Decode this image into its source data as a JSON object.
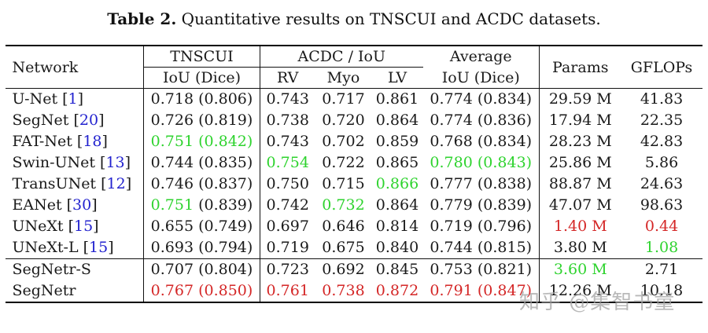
{
  "title": {
    "label": "Table 2.",
    "caption": "Quantitative results on TNSCUI and ACDC datasets."
  },
  "colors": {
    "green": "#2ed32e",
    "red": "#d42626",
    "blue": "#2323cf",
    "watermark": "#a6a6a6"
  },
  "table": {
    "header": {
      "network": "Network",
      "tnscui": "TNSCUI",
      "acdc": "ACDC / IoU",
      "average": "Average",
      "iou_dice": "IoU (Dice)",
      "rv": "RV",
      "myo": "Myo",
      "lv": "LV",
      "params": "Params",
      "gflops": "GFLOPs"
    },
    "rows": [
      {
        "network": "U-Net",
        "ref": "1",
        "tnscui": [
          "0.718",
          "k",
          "(0.806)",
          "k"
        ],
        "acdc": [
          [
            "0.743",
            "k"
          ],
          [
            "0.717",
            "k"
          ],
          [
            "0.861",
            "k"
          ]
        ],
        "avg": [
          "0.774",
          "k",
          "(0.834)",
          "k"
        ],
        "params": [
          "29.59 M",
          "k"
        ],
        "gflops": [
          "41.83",
          "k"
        ],
        "group_start": false
      },
      {
        "network": "SegNet",
        "ref": "20",
        "tnscui": [
          "0.726",
          "k",
          "(0.819)",
          "k"
        ],
        "acdc": [
          [
            "0.738",
            "k"
          ],
          [
            "0.720",
            "k"
          ],
          [
            "0.864",
            "k"
          ]
        ],
        "avg": [
          "0.774",
          "k",
          "(0.836)",
          "k"
        ],
        "params": [
          "17.94 M",
          "k"
        ],
        "gflops": [
          "22.35",
          "k"
        ],
        "group_start": false
      },
      {
        "network": "FAT-Net",
        "ref": "18",
        "tnscui": [
          "0.751",
          "g",
          "(0.842)",
          "g"
        ],
        "acdc": [
          [
            "0.743",
            "k"
          ],
          [
            "0.702",
            "k"
          ],
          [
            "0.859",
            "k"
          ]
        ],
        "avg": [
          "0.768",
          "k",
          "(0.834)",
          "k"
        ],
        "params": [
          "28.23 M",
          "k"
        ],
        "gflops": [
          "42.83",
          "k"
        ],
        "group_start": false
      },
      {
        "network": "Swin-UNet",
        "ref": "13",
        "tnscui": [
          "0.744",
          "k",
          "(0.835)",
          "k"
        ],
        "acdc": [
          [
            "0.754",
            "g"
          ],
          [
            "0.722",
            "k"
          ],
          [
            "0.865",
            "k"
          ]
        ],
        "avg": [
          "0.780",
          "g",
          "(0.843)",
          "g"
        ],
        "params": [
          "25.86 M",
          "k"
        ],
        "gflops": [
          "5.86",
          "k"
        ],
        "group_start": false
      },
      {
        "network": "TransUNet",
        "ref": "12",
        "tnscui": [
          "0.746",
          "k",
          "(0.837)",
          "k"
        ],
        "acdc": [
          [
            "0.750",
            "k"
          ],
          [
            "0.715",
            "k"
          ],
          [
            "0.866",
            "g"
          ]
        ],
        "avg": [
          "0.777",
          "k",
          "(0.838)",
          "k"
        ],
        "params": [
          "88.87 M",
          "k"
        ],
        "gflops": [
          "24.63",
          "k"
        ],
        "group_start": false
      },
      {
        "network": "EANet",
        "ref": "30",
        "tnscui": [
          "0.751",
          "g",
          "(0.839)",
          "k"
        ],
        "acdc": [
          [
            "0.742",
            "k"
          ],
          [
            "0.732",
            "g"
          ],
          [
            "0.864",
            "k"
          ]
        ],
        "avg": [
          "0.779",
          "k",
          "(0.839)",
          "k"
        ],
        "params": [
          "47.07 M",
          "k"
        ],
        "gflops": [
          "98.63",
          "k"
        ],
        "group_start": false
      },
      {
        "network": "UNeXt",
        "ref": "15",
        "tnscui": [
          "0.655",
          "k",
          "(0.749)",
          "k"
        ],
        "acdc": [
          [
            "0.697",
            "k"
          ],
          [
            "0.646",
            "k"
          ],
          [
            "0.814",
            "k"
          ]
        ],
        "avg": [
          "0.719",
          "k",
          "(0.796)",
          "k"
        ],
        "params": [
          "1.40 M",
          "r"
        ],
        "gflops": [
          "0.44",
          "r"
        ],
        "group_start": false
      },
      {
        "network": "UNeXt-L",
        "ref": "15",
        "tnscui": [
          "0.693",
          "k",
          "(0.794)",
          "k"
        ],
        "acdc": [
          [
            "0.719",
            "k"
          ],
          [
            "0.675",
            "k"
          ],
          [
            "0.840",
            "k"
          ]
        ],
        "avg": [
          "0.744",
          "k",
          "(0.815)",
          "k"
        ],
        "params": [
          "3.80 M",
          "k"
        ],
        "gflops": [
          "1.08",
          "g"
        ],
        "group_start": false
      },
      {
        "network": "SegNetr-S",
        "ref": null,
        "tnscui": [
          "0.707",
          "k",
          "(0.804)",
          "k"
        ],
        "acdc": [
          [
            "0.723",
            "k"
          ],
          [
            "0.692",
            "k"
          ],
          [
            "0.845",
            "k"
          ]
        ],
        "avg": [
          "0.753",
          "k",
          "(0.821)",
          "k"
        ],
        "params": [
          "3.60 M",
          "g"
        ],
        "gflops": [
          "2.71",
          "k"
        ],
        "group_start": true
      },
      {
        "network": "SegNetr",
        "ref": null,
        "tnscui": [
          "0.767",
          "r",
          "(0.850)",
          "r"
        ],
        "acdc": [
          [
            "0.761",
            "r"
          ],
          [
            "0.738",
            "r"
          ],
          [
            "0.872",
            "r"
          ]
        ],
        "avg": [
          "0.791",
          "r",
          "(0.847)",
          "r"
        ],
        "params": [
          "12.26 M",
          "k"
        ],
        "gflops": [
          "10.18",
          "k"
        ],
        "group_start": false
      }
    ]
  },
  "watermark": "知乎 @集智书童"
}
